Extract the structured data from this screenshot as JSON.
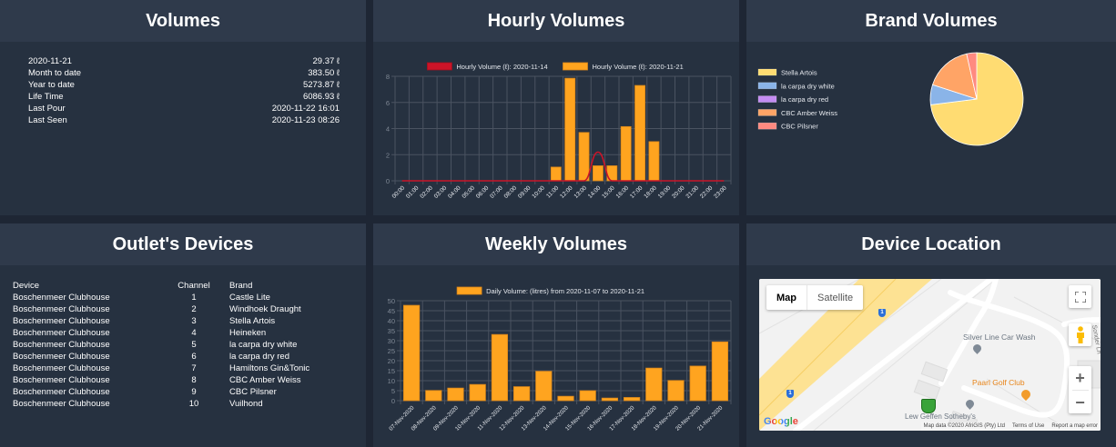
{
  "volumes": {
    "title": "Volumes",
    "rows": [
      {
        "label": "2020-11-21",
        "value": "29.37 ℓ"
      },
      {
        "label": "Month to date",
        "value": "383.50 ℓ"
      },
      {
        "label": "Year to date",
        "value": "5273.87 ℓ"
      },
      {
        "label": "Life Time",
        "value": "6086.93 ℓ"
      },
      {
        "label": "Last Pour",
        "value": "2020-11-22 16:01"
      },
      {
        "label": "Last Seen",
        "value": "2020-11-23 08:26"
      }
    ]
  },
  "hourly": {
    "title": "Hourly Volumes"
  },
  "brand": {
    "title": "Brand Volumes"
  },
  "devices": {
    "title": "Outlet's Devices",
    "headers": {
      "device": "Device",
      "channel": "Channel",
      "brand": "Brand"
    },
    "rows": [
      {
        "device": "Boschenmeer Clubhouse",
        "channel": "1",
        "brand": "Castle Lite"
      },
      {
        "device": "Boschenmeer Clubhouse",
        "channel": "2",
        "brand": "Windhoek Draught"
      },
      {
        "device": "Boschenmeer Clubhouse",
        "channel": "3",
        "brand": "Stella Artois"
      },
      {
        "device": "Boschenmeer Clubhouse",
        "channel": "4",
        "brand": "Heineken"
      },
      {
        "device": "Boschenmeer Clubhouse",
        "channel": "5",
        "brand": "la carpa dry white"
      },
      {
        "device": "Boschenmeer Clubhouse",
        "channel": "6",
        "brand": "la carpa dry red"
      },
      {
        "device": "Boschenmeer Clubhouse",
        "channel": "7",
        "brand": "Hamiltons Gin&Tonic"
      },
      {
        "device": "Boschenmeer Clubhouse",
        "channel": "8",
        "brand": "CBC Amber Weiss"
      },
      {
        "device": "Boschenmeer Clubhouse",
        "channel": "9",
        "brand": "CBC Pilsner"
      },
      {
        "device": "Boschenmeer Clubhouse",
        "channel": "10",
        "brand": "Vuilhond"
      }
    ]
  },
  "weekly": {
    "title": "Weekly Volumes"
  },
  "map": {
    "title": "Device Location",
    "map_type_map": "Map",
    "map_type_satellite": "Satellite",
    "poi_car_wash": "Silver Line Car Wash",
    "poi_golf_club": "Paarl Golf Club",
    "poi_sothebys": "Lew Geffen Sotheby's",
    "street_label": "Sonder Ln",
    "route_marker": "1",
    "google_logo": "Google",
    "attribution": "Map data ©2020 AfriGIS (Pty) Ltd",
    "terms": "Terms of Use",
    "report": "Report a map error",
    "zoom_in": "+",
    "zoom_out": "−"
  },
  "colors": {
    "bar": "#ffa41f",
    "line": "#cc1428",
    "pie": [
      "#ffdc72",
      "#8ab4e8",
      "#c48cf2",
      "#ffa466",
      "#ff8a80"
    ]
  },
  "chart_data": [
    {
      "type": "bar",
      "title": "Hourly Volumes",
      "categories": [
        "00:00",
        "01:00",
        "02:00",
        "03:00",
        "04:00",
        "05:00",
        "06:00",
        "07:00",
        "08:00",
        "09:00",
        "10:00",
        "11:00",
        "12:00",
        "13:00",
        "14:00",
        "15:00",
        "16:00",
        "17:00",
        "18:00",
        "19:00",
        "20:00",
        "21:00",
        "22:00",
        "23:00"
      ],
      "series": [
        {
          "name": "Hourly Volume (ℓ): 2020-11-14",
          "kind": "line",
          "values": [
            0,
            0,
            0,
            0,
            0,
            0,
            0,
            0,
            0,
            0,
            0,
            0,
            0,
            0,
            2.2,
            0,
            0,
            0,
            0,
            0,
            0,
            0,
            0,
            0
          ]
        },
        {
          "name": "Hourly Volume (ℓ): 2020-11-21",
          "kind": "bar",
          "values": [
            0,
            0,
            0,
            0,
            0,
            0,
            0,
            0,
            0,
            0,
            0,
            1.05,
            7.85,
            3.7,
            1.15,
            1.15,
            4.15,
            7.3,
            3.0,
            0,
            0,
            0,
            0,
            0
          ]
        }
      ],
      "ylim": [
        0,
        8
      ],
      "yticks": [
        0,
        2,
        4,
        6,
        8
      ],
      "grid": true,
      "legend": "top-center"
    },
    {
      "type": "pie",
      "title": "Brand Volumes",
      "labels": [
        "Stella Artois",
        "la carpa dry white",
        "la carpa dry red",
        "CBC Amber Weiss",
        "CBC Pilsner"
      ],
      "values": [
        73.0,
        7.0,
        0.0,
        16.5,
        3.5
      ],
      "legend": "left"
    },
    {
      "type": "bar",
      "title": "Weekly Volumes",
      "categories": [
        "07-Nov-2020",
        "08-Nov-2020",
        "09-Nov-2020",
        "10-Nov-2020",
        "11-Nov-2020",
        "12-Nov-2020",
        "13-Nov-2020",
        "14-Nov-2020",
        "15-Nov-2020",
        "16-Nov-2020",
        "17-Nov-2020",
        "18-Nov-2020",
        "19-Nov-2020",
        "20-Nov-2020",
        "21-Nov-2020"
      ],
      "series": [
        {
          "name": "Daily Volume: (litres) from 2020-11-07 to 2020-11-21",
          "values": [
            47.7,
            5.1,
            6.3,
            8.1,
            33.1,
            7.0,
            14.7,
            2.2,
            5.0,
            1.3,
            1.6,
            16.3,
            10.1,
            17.3,
            29.4
          ]
        }
      ],
      "ylim": [
        0,
        50
      ],
      "yticks": [
        0,
        5,
        10,
        15,
        20,
        25,
        30,
        35,
        40,
        45,
        50
      ],
      "grid": true,
      "legend": "top-center"
    }
  ]
}
